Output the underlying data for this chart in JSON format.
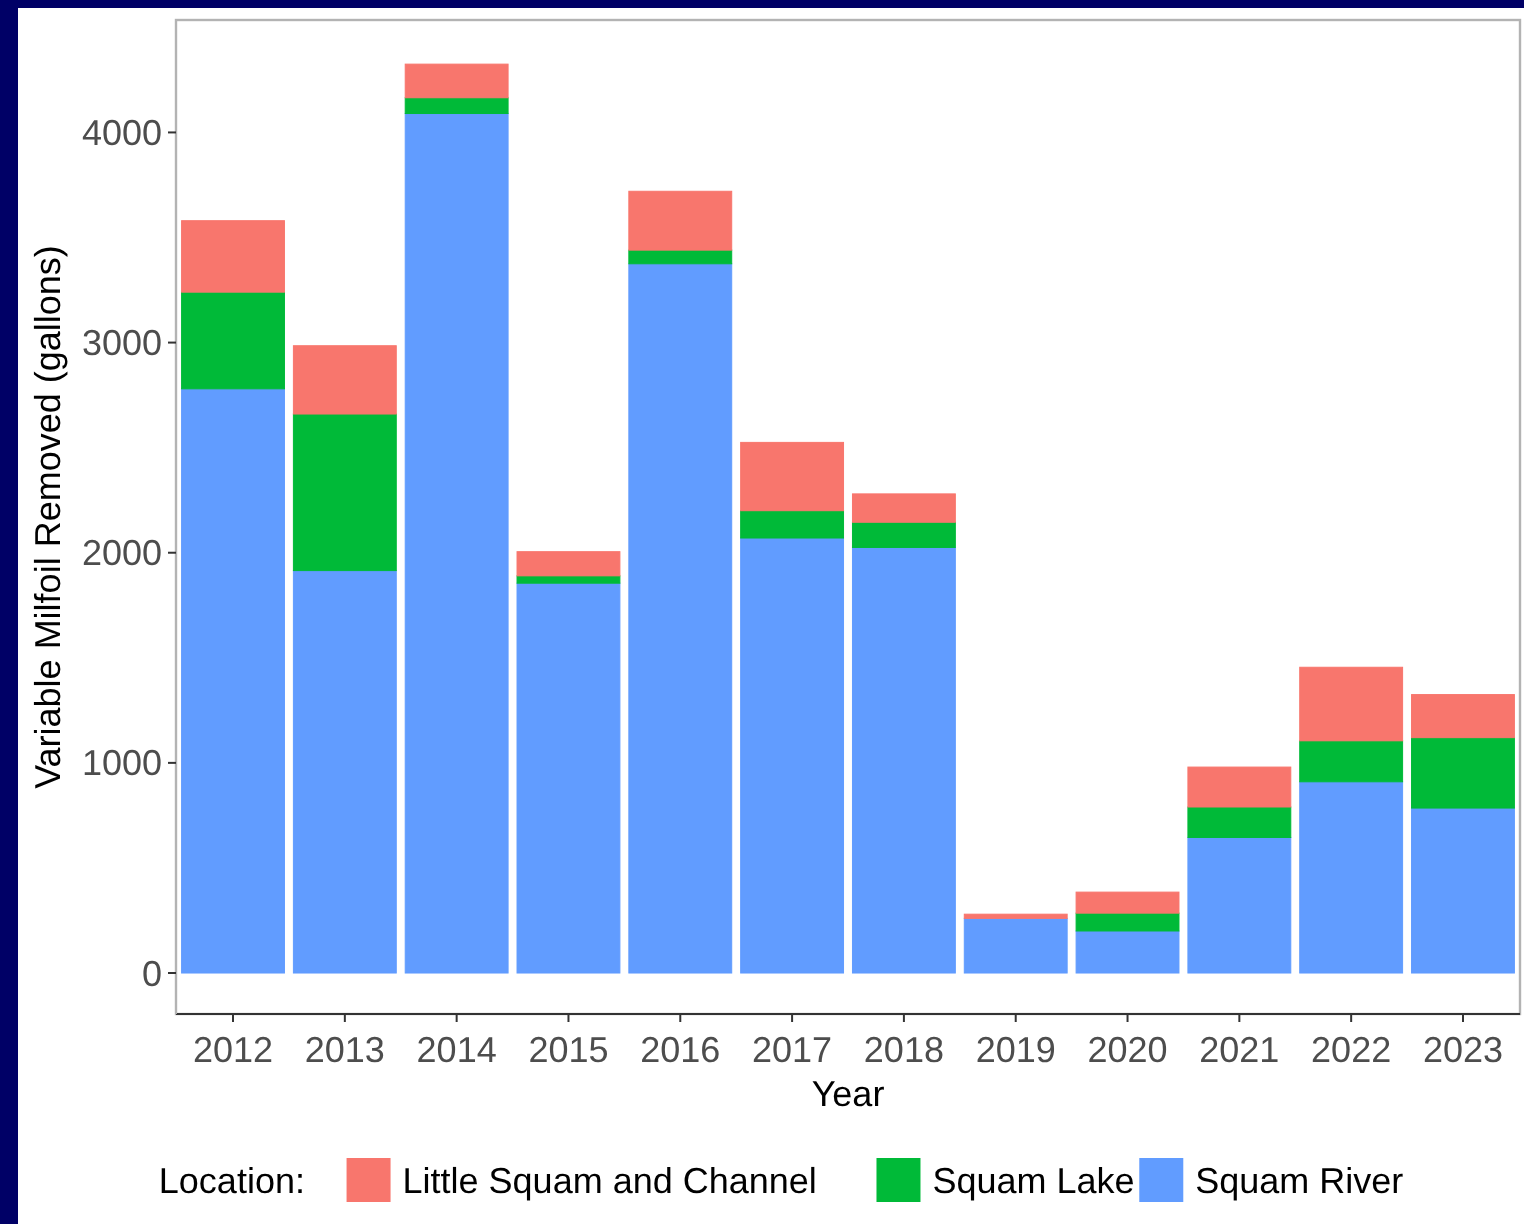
{
  "chart_data": {
    "type": "bar",
    "stacked": true,
    "xlabel": "Year",
    "ylabel": "Variable Milfoil Removed (gallons)",
    "legend_title": "Location:",
    "legend": "bottom",
    "grid": false,
    "categories": [
      "2012",
      "2013",
      "2014",
      "2015",
      "2016",
      "2017",
      "2018",
      "2019",
      "2020",
      "2021",
      "2022",
      "2023"
    ],
    "ylim": [
      -195,
      4535
    ],
    "yticks": [
      0,
      1000,
      2000,
      3000,
      4000
    ],
    "series": [
      {
        "name": "Squam River",
        "color": "#619cff",
        "values": [
          2780,
          1915,
          4090,
          1855,
          3375,
          2070,
          2025,
          260,
          200,
          645,
          910,
          785
        ]
      },
      {
        "name": "Squam Lake",
        "color": "#00ba38",
        "values": [
          460,
          745,
          75,
          35,
          65,
          130,
          120,
          0,
          85,
          145,
          195,
          335
        ]
      },
      {
        "name": "Little Squam and Channel",
        "color": "#f8766d",
        "values": [
          340,
          325,
          160,
          115,
          280,
          325,
          135,
          20,
          100,
          190,
          350,
          205
        ]
      }
    ]
  }
}
